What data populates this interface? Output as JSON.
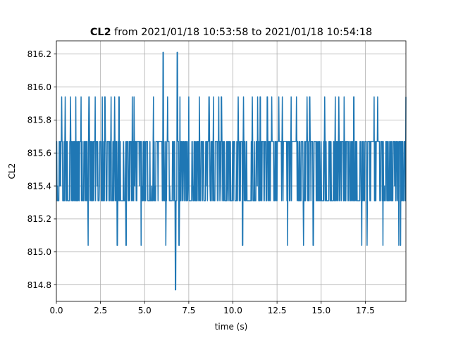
{
  "chart_data": {
    "type": "line",
    "title": {
      "bold": "CL2",
      "rest": " from 2021/01/18 10:53:58 to 2021/01/18 10:54:18"
    },
    "xlabel": "time (s)",
    "ylabel": "CL2",
    "xlim": [
      0,
      19.8
    ],
    "ylim": [
      814.7,
      816.28
    ],
    "xticks": [
      0.0,
      2.5,
      5.0,
      7.5,
      10.0,
      12.5,
      15.0,
      17.5
    ],
    "xtick_labels": [
      "0.0",
      "2.5",
      "5.0",
      "7.5",
      "10.0",
      "12.5",
      "15.0",
      "17.5"
    ],
    "yticks": [
      814.8,
      815.0,
      815.2,
      815.4,
      815.6,
      815.8,
      816.0,
      816.2
    ],
    "ytick_labels": [
      "814.8",
      "815.0",
      "815.2",
      "815.4",
      "815.6",
      "815.8",
      "816.0",
      "816.2"
    ],
    "grid": true,
    "series": [
      {
        "color": "#1f77b4",
        "levels": [
          814.77,
          815.04,
          815.31,
          815.4,
          815.67,
          815.94,
          816.21
        ],
        "x": [
          0.0,
          19.8
        ],
        "y": [
          815.67,
          815.94
        ]
      }
    ]
  }
}
